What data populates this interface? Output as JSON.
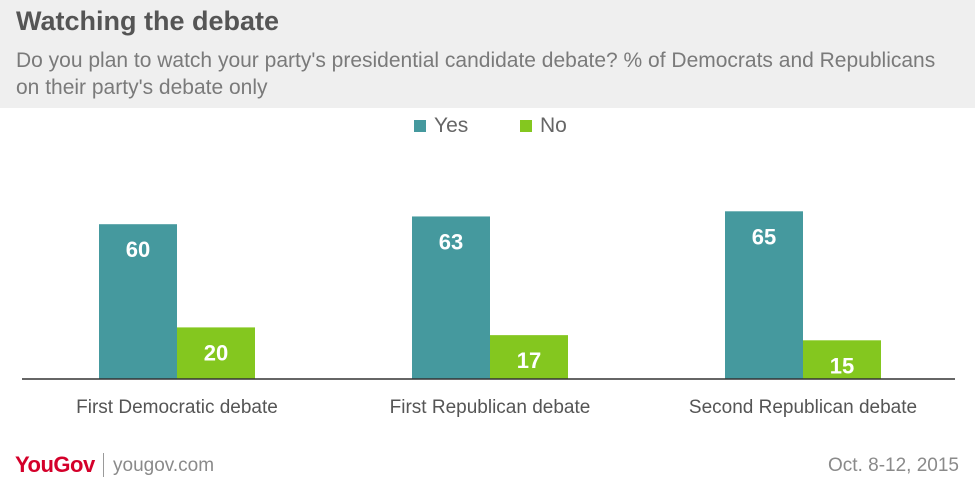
{
  "header": {
    "title": "Watching the debate",
    "subtitle": "Do you plan to watch your party's presidential candidate debate? % of Democrats and Republicans on their party's debate only"
  },
  "colors": {
    "yes": "#45999e",
    "no": "#84c71f",
    "header_bg": "#efefef",
    "brand": "#d4002a"
  },
  "footer": {
    "logo": "YouGov",
    "site": "yougov.com",
    "date": "Oct. 8-12, 2015"
  },
  "chart_data": {
    "type": "bar",
    "title": "Watching the debate",
    "categories": [
      "First Democratic debate",
      "First Republican debate",
      "Second Republican debate"
    ],
    "series": [
      {
        "name": "Yes",
        "values": [
          60,
          63,
          65
        ],
        "color": "#45999e"
      },
      {
        "name": "No",
        "values": [
          20,
          17,
          15
        ],
        "color": "#84c71f"
      }
    ],
    "ylim": [
      0,
      100
    ],
    "grid": false,
    "legend_position": "top-center",
    "data_labels": true
  }
}
